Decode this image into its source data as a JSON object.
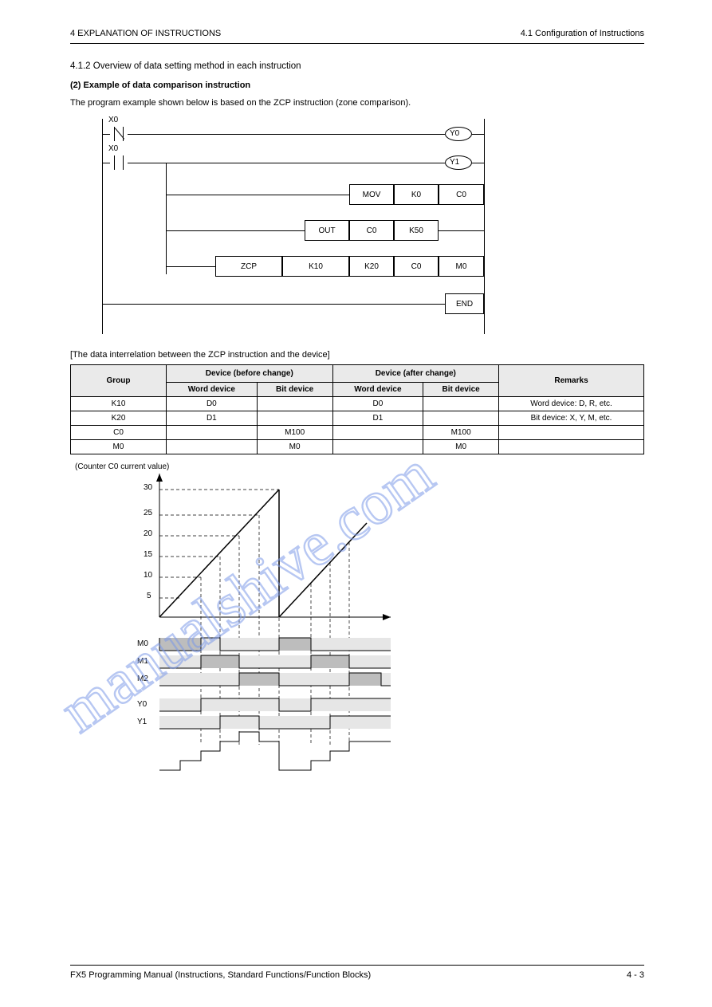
{
  "header": {
    "left": "4  EXPLANATION OF INSTRUCTIONS",
    "right": "4.1 Configuration of Instructions"
  },
  "titles": {
    "section": "4.1.2   Overview of data setting method in each instruction",
    "sub": "(2) Example of data comparison instruction",
    "intro": "The program example shown below is based on the ZCP instruction (zone comparison)."
  },
  "ladder": {
    "labels": {
      "c1": "X0",
      "c2": "X0",
      "coil1": "Y0",
      "coil2": "Y1",
      "mov1_op": "MOV",
      "mov1_s": "K0",
      "mov1_d": "C0",
      "zcp_op": "ZCP",
      "zcp_a": "K10",
      "zcp_b": "K20",
      "zcp_c": "C0",
      "zcp_d": "M0",
      "out_op": "OUT",
      "out_a": "C0",
      "out_b": "K50",
      "end": "END"
    }
  },
  "table": {
    "title": "[The data interrelation between the ZCP instruction and the device]",
    "headers": {
      "group": "Group",
      "dev_before": "Device (before change)",
      "word_dev_b": "Word device",
      "bit_dev_b": "Bit device",
      "dev_after": "Device (after change)",
      "word_dev_a": "Word device",
      "bit_dev_a": "Bit device",
      "remarks": "Remarks"
    },
    "rows": [
      [
        "K10",
        "D0",
        "",
        "K10",
        "D0",
        "",
        "Word device: D, R, etc."
      ],
      [
        "K20",
        "D1",
        "",
        "K20",
        "D1",
        "",
        "Bit device: X, Y, M, etc."
      ],
      [
        "C0",
        "",
        "M100",
        "C0",
        "",
        "M100",
        ""
      ],
      [
        "M0",
        "",
        "M0",
        "M0",
        "",
        "M0",
        ""
      ]
    ]
  },
  "timing": {
    "axes": {
      "y_top": "30",
      "y_vals": [
        "25",
        "20",
        "15",
        "10",
        "5"
      ],
      "y_label": "(Counter C0 current value)"
    },
    "signals": [
      "M0",
      "M1",
      "M2",
      "",
      "Y0",
      "Y1",
      ""
    ]
  },
  "footer": {
    "left": "FX5 Programming Manual (Instructions, Standard Functions/Function Blocks)",
    "right": "4 - 3"
  },
  "watermark": "manualshive.com"
}
